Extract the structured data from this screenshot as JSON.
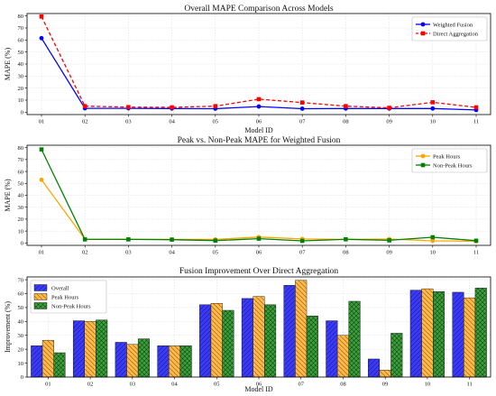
{
  "chart_data": [
    {
      "type": "line",
      "title": "Overall MAPE Comparison Across Models",
      "xlabel": "Model ID",
      "ylabel": "MAPE (%)",
      "categories": [
        "01",
        "02",
        "03",
        "04",
        "05",
        "06",
        "07",
        "08",
        "09",
        "10",
        "11"
      ],
      "ylim": [
        -2,
        82
      ],
      "yticks": [
        0,
        10,
        20,
        30,
        40,
        50,
        60,
        70,
        80
      ],
      "grid": true,
      "legend": "top-right",
      "series": [
        {
          "name": "Weighted Fusion",
          "color": "#0000ff",
          "dash": "solid",
          "marker": "circle",
          "values": [
            61.5,
            3.2,
            3.2,
            3.0,
            2.9,
            4.7,
            2.9,
            3.0,
            3.0,
            3.0,
            1.8
          ]
        },
        {
          "name": "Direct Aggregation",
          "color": "#ff0000",
          "dash": "dashed",
          "marker": "square",
          "values": [
            79.5,
            5.0,
            4.2,
            4.0,
            5.0,
            10.8,
            8.0,
            5.0,
            3.6,
            8.2,
            4.0
          ]
        }
      ]
    },
    {
      "type": "line",
      "title": "Peak vs. Non-Peak MAPE for Weighted Fusion",
      "xlabel": "",
      "ylabel": "MAPE (%)",
      "categories": [
        "01",
        "02",
        "03",
        "04",
        "05",
        "06",
        "07",
        "08",
        "09",
        "10",
        "11"
      ],
      "ylim": [
        -2,
        82
      ],
      "yticks": [
        0,
        10,
        20,
        30,
        40,
        50,
        60,
        70,
        80
      ],
      "grid": true,
      "legend": "top-right",
      "series": [
        {
          "name": "Peak Hours",
          "color": "#ffa500",
          "dash": "solid",
          "marker": "circle",
          "values": [
            53.0,
            3.2,
            3.1,
            3.0,
            3.0,
            5.0,
            3.4,
            3.0,
            3.3,
            1.8,
            1.5
          ]
        },
        {
          "name": "Non-Peak Hours",
          "color": "#008000",
          "dash": "solid",
          "marker": "square",
          "values": [
            78.5,
            3.0,
            3.0,
            2.8,
            2.0,
            3.6,
            1.8,
            3.1,
            2.2,
            4.8,
            1.9
          ]
        }
      ]
    },
    {
      "type": "bar",
      "title": "Fusion Improvement Over Direct Aggregation",
      "xlabel": "Model ID",
      "ylabel": "Improvement (%)",
      "categories": [
        "01",
        "02",
        "03",
        "04",
        "05",
        "06",
        "07",
        "08",
        "09",
        "10",
        "11"
      ],
      "ylim": [
        0,
        72
      ],
      "yticks": [
        0,
        10,
        20,
        30,
        40,
        50,
        60,
        70
      ],
      "grid": true,
      "legend": "top-left",
      "series": [
        {
          "name": "Overall",
          "color": "#3a3aff",
          "hatch": "//",
          "values": [
            22.5,
            40.5,
            25.0,
            22.5,
            52.0,
            56.5,
            66.0,
            40.5,
            13.0,
            62.5,
            61.0
          ]
        },
        {
          "name": "Peak Hours",
          "color": "#ffb84d",
          "hatch": "\\\\",
          "values": [
            26.5,
            40.0,
            23.5,
            22.5,
            53.0,
            58.0,
            69.5,
            30.0,
            5.0,
            63.5,
            57.0
          ]
        },
        {
          "name": "Non-Peak Hours",
          "color": "#3aa03a",
          "hatch": "xx",
          "values": [
            17.5,
            41.0,
            27.5,
            22.5,
            48.0,
            52.0,
            44.0,
            54.5,
            31.5,
            61.5,
            64.0
          ]
        }
      ]
    }
  ]
}
